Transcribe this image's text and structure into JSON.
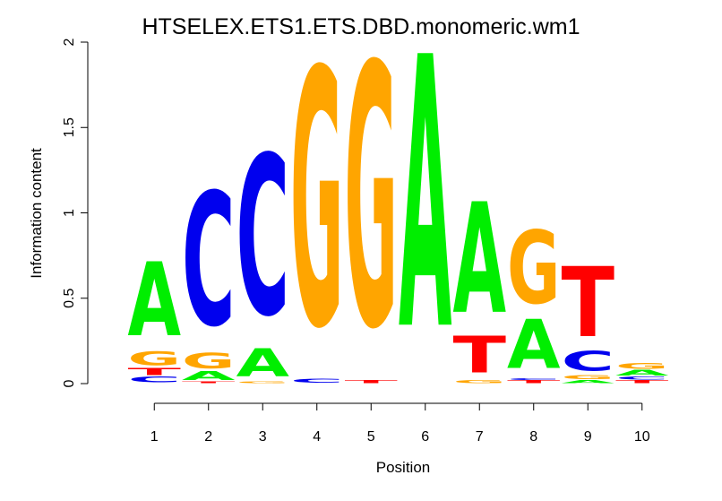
{
  "chart_data": {
    "type": "sequence-logo",
    "title": "HTSELEX.ETS1.ETS.DBD.monomeric.wm1",
    "xlabel": "Position",
    "ylabel": "Information content",
    "ylim": [
      0,
      2
    ],
    "yticks": [
      "0",
      "0.5",
      "1",
      "1.5",
      "2"
    ],
    "ytick_values": [
      0,
      0.5,
      1,
      1.5,
      2
    ],
    "xticks": [
      "1",
      "2",
      "3",
      "4",
      "5",
      "6",
      "7",
      "8",
      "9",
      "10"
    ],
    "colors": {
      "A": "#00ee00",
      "C": "#0000ee",
      "G": "#ffa500",
      "T": "#ff0000"
    },
    "positions": [
      {
        "position": 1,
        "stack": [
          {
            "base": "C",
            "height": 0.04
          },
          {
            "base": "T",
            "height": 0.05
          },
          {
            "base": "G",
            "height": 0.1
          },
          {
            "base": "A",
            "height": 0.53
          }
        ]
      },
      {
        "position": 2,
        "stack": [
          {
            "base": "T",
            "height": 0.01
          },
          {
            "base": "A",
            "height": 0.06
          },
          {
            "base": "G",
            "height": 0.11
          },
          {
            "base": "C",
            "height": 0.95
          }
        ]
      },
      {
        "position": 3,
        "stack": [
          {
            "base": "G",
            "height": 0.01
          },
          {
            "base": "A",
            "height": 0.2
          },
          {
            "base": "C",
            "height": 1.14
          }
        ]
      },
      {
        "position": 4,
        "stack": [
          {
            "base": "C",
            "height": 0.03
          },
          {
            "base": "G",
            "height": 1.83
          }
        ]
      },
      {
        "position": 5,
        "stack": [
          {
            "base": "T",
            "height": 0.02
          },
          {
            "base": "G",
            "height": 1.87
          }
        ]
      },
      {
        "position": 6,
        "stack": [
          {
            "base": "A",
            "height": 1.94
          }
        ]
      },
      {
        "position": 7,
        "stack": [
          {
            "base": "G",
            "height": 0.02
          },
          {
            "base": "T",
            "height": 0.26
          },
          {
            "base": "A",
            "height": 0.79
          }
        ]
      },
      {
        "position": 8,
        "stack": [
          {
            "base": "T",
            "height": 0.02
          },
          {
            "base": "C",
            "height": 0.01
          },
          {
            "base": "A",
            "height": 0.35
          },
          {
            "base": "G",
            "height": 0.52
          }
        ]
      },
      {
        "position": 9,
        "stack": [
          {
            "base": "A",
            "height": 0.02
          },
          {
            "base": "G",
            "height": 0.03
          },
          {
            "base": "C",
            "height": 0.14
          },
          {
            "base": "T",
            "height": 0.5
          }
        ]
      },
      {
        "position": 10,
        "stack": [
          {
            "base": "T",
            "height": 0.02
          },
          {
            "base": "C",
            "height": 0.02
          },
          {
            "base": "A",
            "height": 0.04
          },
          {
            "base": "G",
            "height": 0.04
          }
        ]
      }
    ]
  }
}
